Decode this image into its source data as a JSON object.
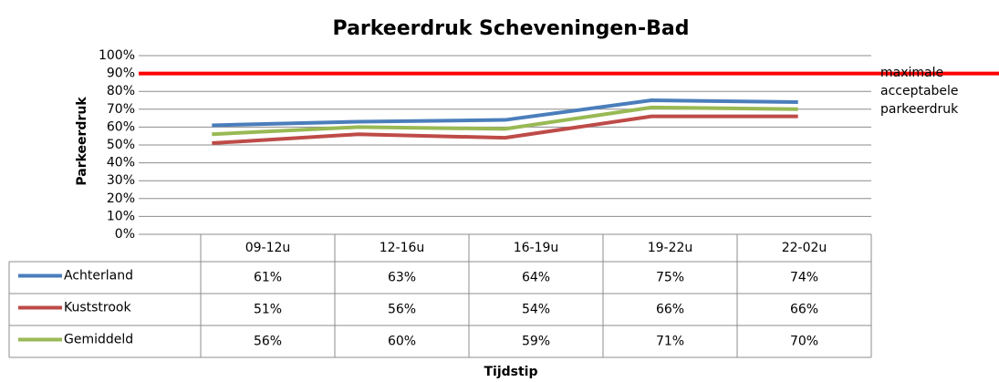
{
  "chart_data": {
    "type": "line",
    "title": "Parkeerdruk Scheveningen-Bad",
    "y_label": "Parkeerdruk",
    "x_label": "Tijdstip",
    "categories": [
      "09-12u",
      "12-16u",
      "16-19u",
      "19-22u",
      "22-02u"
    ],
    "series": [
      {
        "name": "Achterland",
        "color": "#4a7ebb",
        "values": [
          61,
          63,
          64,
          75,
          74
        ],
        "value_labels": [
          "61%",
          "63%",
          "64%",
          "75%",
          "74%"
        ]
      },
      {
        "name": "Kuststrook",
        "color": "#be4b48",
        "values": [
          51,
          56,
          54,
          66,
          66
        ],
        "value_labels": [
          "51%",
          "56%",
          "54%",
          "66%",
          "66%"
        ]
      },
      {
        "name": "Gemiddeld",
        "color": "#98b954",
        "values": [
          56,
          60,
          59,
          71,
          70
        ],
        "value_labels": [
          "56%",
          "60%",
          "59%",
          "71%",
          "70%"
        ]
      }
    ],
    "ylim": [
      0,
      100
    ],
    "yticks": [
      {
        "value": 0,
        "label": "0%"
      },
      {
        "value": 10,
        "label": "10%"
      },
      {
        "value": 20,
        "label": "20%"
      },
      {
        "value": 30,
        "label": "30%"
      },
      {
        "value": 40,
        "label": "40%"
      },
      {
        "value": 50,
        "label": "50%"
      },
      {
        "value": 60,
        "label": "60%"
      },
      {
        "value": 70,
        "label": "70%"
      },
      {
        "value": 80,
        "label": "80%"
      },
      {
        "value": 90,
        "label": "90%"
      },
      {
        "value": 100,
        "label": "100%"
      }
    ],
    "grid": true,
    "reference_line": {
      "value": 90,
      "color": "#ff0000",
      "lines": [
        "maximale",
        "acceptabele",
        "parkeerdruk"
      ]
    }
  }
}
